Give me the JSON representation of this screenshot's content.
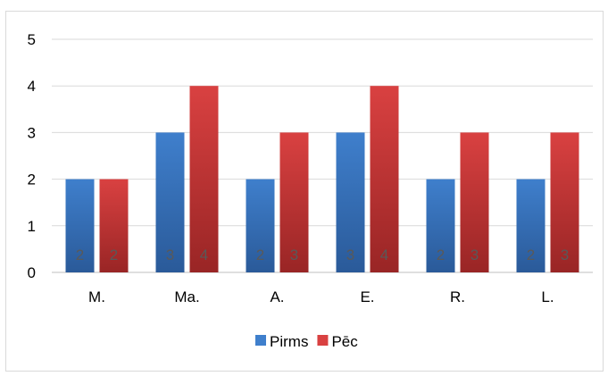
{
  "chart_data": {
    "type": "bar",
    "categories": [
      "M.",
      "Ma.",
      "A.",
      "E.",
      "R.",
      "L."
    ],
    "series": [
      {
        "name": "Pirms",
        "values": [
          2,
          3,
          2,
          3,
          2,
          2
        ],
        "color": "#3f7fcc",
        "color_dark": "#2a5a99"
      },
      {
        "name": "Pēc",
        "values": [
          2,
          4,
          3,
          4,
          3,
          3
        ],
        "color": "#d94141",
        "color_dark": "#992525"
      }
    ],
    "ylim": [
      0,
      5
    ],
    "yticks": [
      "0",
      "1",
      "2",
      "3",
      "4",
      "5"
    ],
    "grid": true,
    "legend_position": "bottom",
    "data_labels": true,
    "data_label_color": "#595959"
  }
}
